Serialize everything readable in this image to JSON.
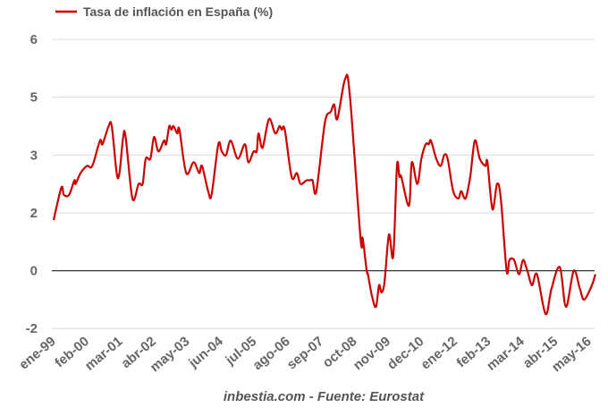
{
  "chart_data": {
    "type": "line",
    "title": "",
    "xlabel": "",
    "ylabel": "",
    "legend": {
      "position": "top-left",
      "entries": [
        "Tasa de inflación en España (%)"
      ]
    },
    "credit": "inbestia.com - Fuente: Eurostat",
    "grid": true,
    "ylim": [
      -1.6,
      6.4
    ],
    "y_ticks": [
      -1.6,
      0,
      1.6,
      3.2,
      4.8,
      6.4
    ],
    "y_tick_labels": [
      "-2",
      "0",
      "2",
      "3",
      "5",
      "6"
    ],
    "x_range_years": [
      1999.0,
      2016.55
    ],
    "x_ticks": [
      1999.0,
      2000.083,
      2001.167,
      2002.25,
      2003.333,
      2004.417,
      2005.5,
      2006.583,
      2007.667,
      2008.75,
      2009.833,
      2010.917,
      2012.0,
      2013.083,
      2014.167,
      2015.25,
      2016.333
    ],
    "x_tick_labels": [
      "ene-99",
      "feb-00",
      "mar-01",
      "abr-02",
      "may-03",
      "jun-04",
      "jul-05",
      "ago-06",
      "sep-07",
      "oct-08",
      "nov-09",
      "dec-10",
      "ene-12",
      "feb-13",
      "mar-14",
      "abr-15",
      "may-16"
    ],
    "colors": {
      "series": "#cc0000",
      "grid": "#dddddd",
      "zero": "#333333"
    },
    "series": [
      {
        "name": "Tasa de inflación en España (%)",
        "x": [
          1999.0,
          1999.25,
          1999.33,
          1999.5,
          1999.67,
          1999.71,
          1999.87,
          2000.08,
          2000.25,
          2000.5,
          2000.58,
          2000.78,
          2000.88,
          2001.04,
          2001.13,
          2001.25,
          2001.33,
          2001.55,
          2001.75,
          2001.88,
          2001.98,
          2002.13,
          2002.25,
          2002.39,
          2002.57,
          2002.64,
          2002.74,
          2002.81,
          2002.88,
          2003.0,
          2003.07,
          2003.29,
          2003.53,
          2003.71,
          2003.8,
          2004.0,
          2004.11,
          2004.33,
          2004.44,
          2004.58,
          2004.73,
          2004.96,
          2005.19,
          2005.3,
          2005.47,
          2005.57,
          2005.63,
          2005.76,
          2005.97,
          2006.17,
          2006.31,
          2006.38,
          2006.48,
          2006.7,
          2006.87,
          2006.99,
          2007.18,
          2007.3,
          2007.38,
          2007.5,
          2007.78,
          2007.97,
          2008.08,
          2008.18,
          2008.43,
          2008.58,
          2008.93,
          2009.0,
          2009.13,
          2009.17,
          2009.3,
          2009.43,
          2009.53,
          2009.61,
          2009.71,
          2009.85,
          2009.99,
          2010.11,
          2010.19,
          2010.25,
          2010.5,
          2010.59,
          2010.77,
          2010.9,
          2011.04,
          2011.14,
          2011.21,
          2011.38,
          2011.53,
          2011.64,
          2011.75,
          2011.93,
          2012.1,
          2012.19,
          2012.33,
          2012.48,
          2012.63,
          2012.79,
          2012.97,
          2013.04,
          2013.2,
          2013.35,
          2013.47,
          2013.66,
          2013.75,
          2013.9,
          2014.06,
          2014.19,
          2014.33,
          2014.48,
          2014.64,
          2014.92,
          2015.11,
          2015.38,
          2015.58,
          2015.83,
          2016.03,
          2016.17,
          2016.42,
          2016.53
        ],
        "values": [
          1.4,
          2.3,
          2.1,
          2.1,
          2.5,
          2.4,
          2.7,
          2.9,
          2.9,
          3.6,
          3.5,
          4.0,
          4.0,
          2.7,
          2.7,
          3.7,
          3.7,
          2.0,
          2.4,
          2.4,
          3.1,
          3.1,
          3.7,
          3.3,
          3.6,
          3.5,
          4.0,
          3.9,
          4.0,
          3.8,
          3.9,
          2.7,
          3.0,
          2.7,
          2.9,
          2.2,
          2.1,
          3.5,
          3.3,
          3.2,
          3.6,
          3.1,
          3.5,
          3.0,
          3.3,
          3.3,
          3.8,
          3.4,
          4.2,
          3.8,
          4.0,
          3.9,
          3.9,
          2.6,
          2.7,
          2.4,
          2.5,
          2.5,
          2.5,
          2.2,
          4.1,
          4.4,
          4.6,
          4.2,
          5.3,
          4.9,
          0.9,
          0.9,
          0.0,
          -0.1,
          -0.7,
          -1.0,
          -0.4,
          -0.6,
          -0.3,
          1.0,
          0.4,
          2.9,
          2.6,
          2.6,
          1.8,
          3.0,
          2.4,
          3.1,
          3.5,
          3.5,
          3.6,
          3.1,
          2.9,
          3.2,
          3.1,
          2.2,
          2.0,
          2.2,
          2.0,
          2.6,
          3.6,
          3.1,
          2.9,
          3.0,
          1.7,
          2.4,
          2.0,
          0.0,
          0.3,
          0.3,
          -0.1,
          0.3,
          0.0,
          -0.4,
          -0.1,
          -1.2,
          -0.5,
          0.1,
          -1.0,
          0.0,
          -0.5,
          -0.8,
          -0.4,
          -0.1
        ]
      }
    ]
  }
}
